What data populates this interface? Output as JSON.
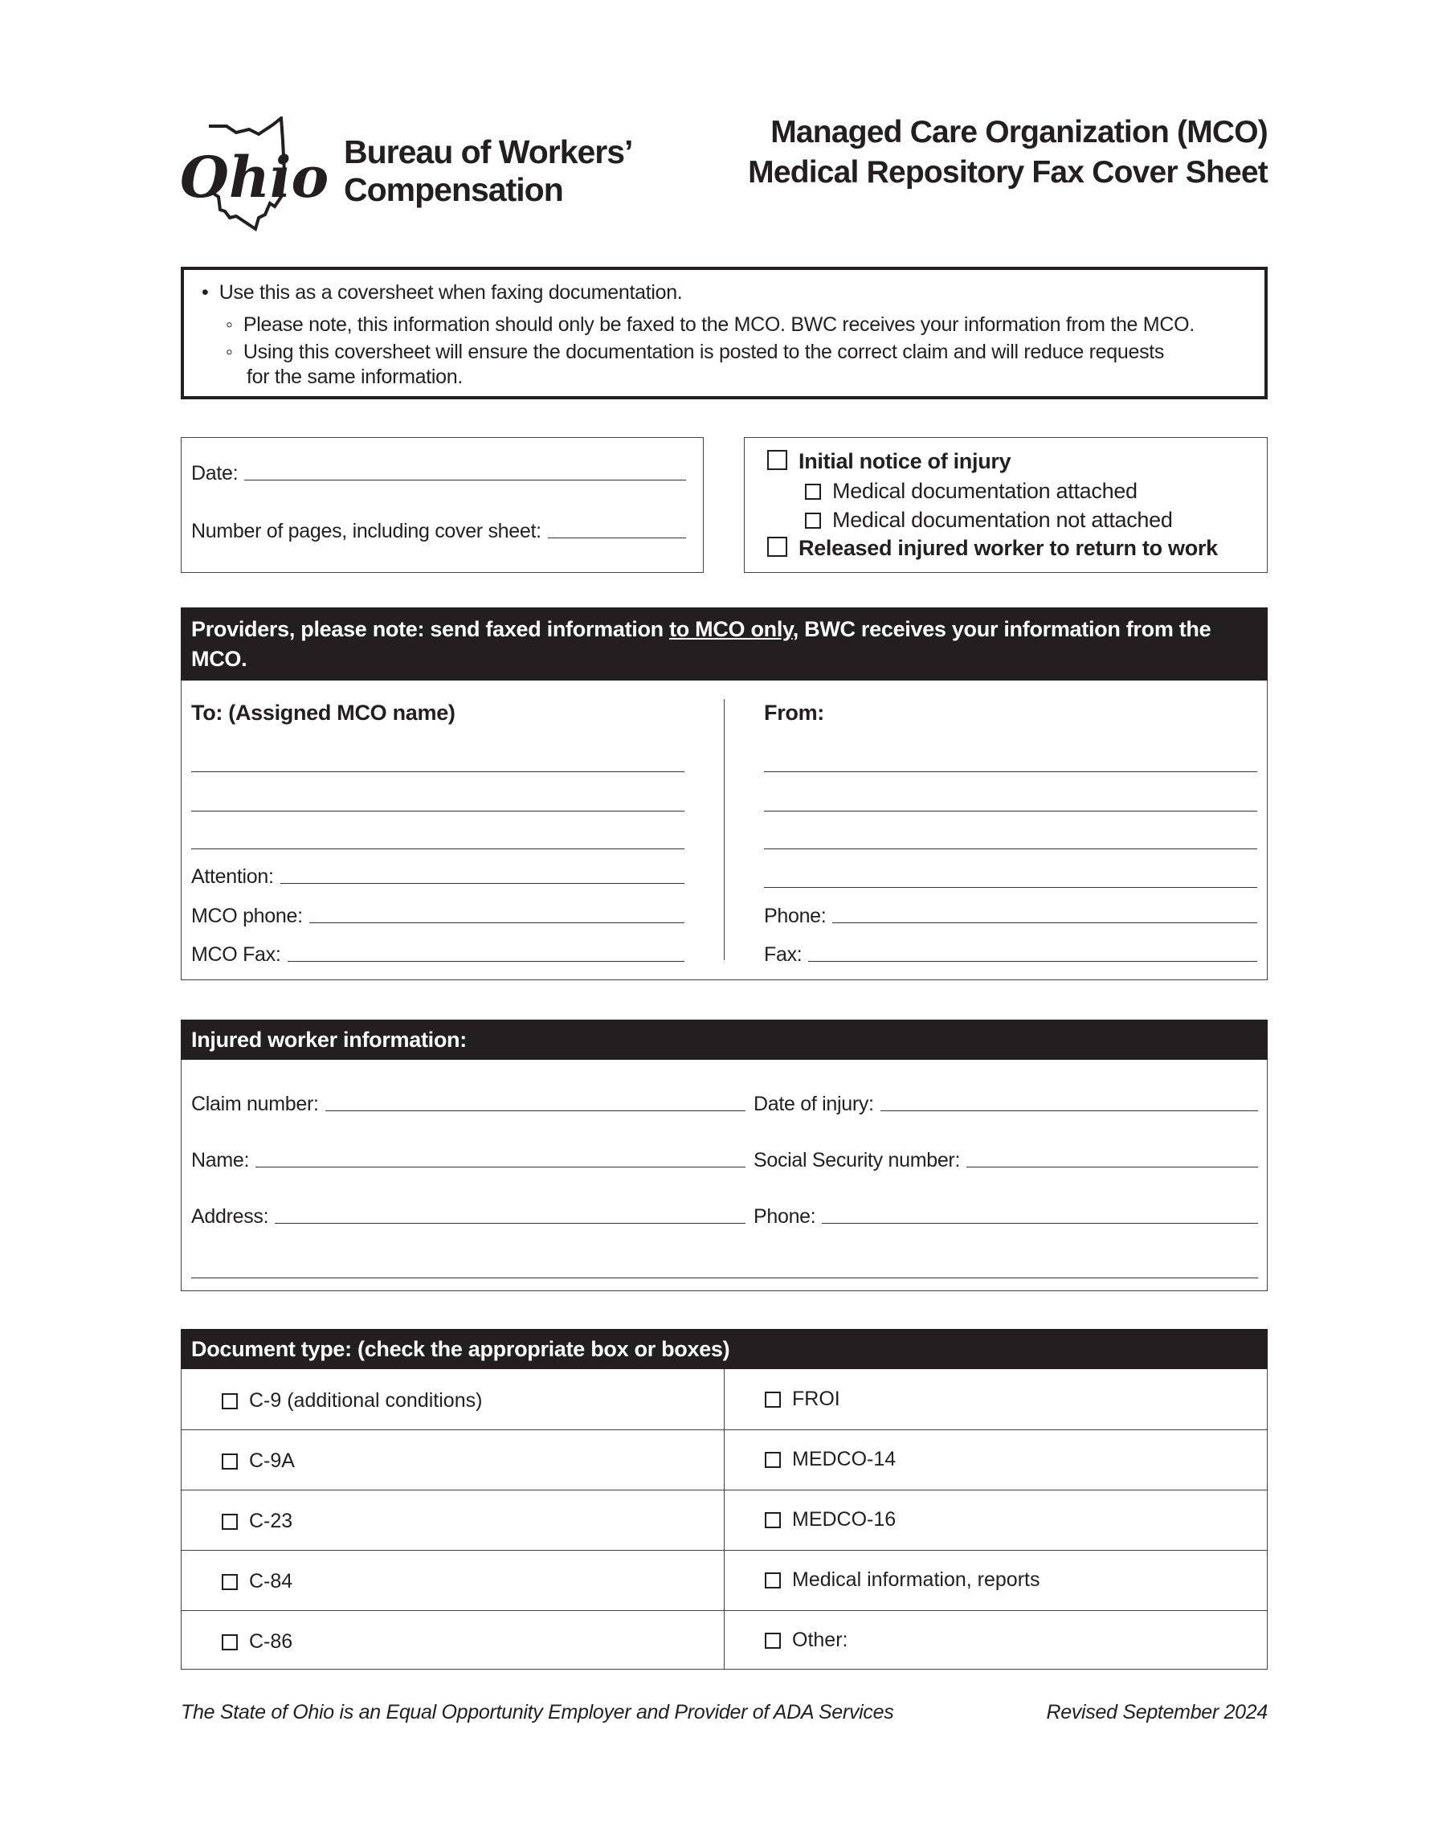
{
  "header": {
    "logo_text": "Ohio",
    "org_line1": "Bureau of Workers’",
    "org_line2": "Compensation",
    "title_line1": "Managed Care Organization (MCO)",
    "title_line2": "Medical Repository Fax Cover Sheet"
  },
  "notice": {
    "bullet": "Use this as a coversheet when faxing documentation.",
    "sub1": "Please note, this information should only be faxed to the MCO. BWC receives your information from the MCO.",
    "sub2a": "Using this coversheet will ensure the documentation is posted to the correct claim and will reduce requests",
    "sub2b": "for the same information."
  },
  "date_box": {
    "date_label": "Date:",
    "pages_label": "Number of pages, including cover sheet:"
  },
  "status_box": {
    "initial": "Initial notice of injury",
    "attached": "Medical documentation attached",
    "not_attached": "Medical documentation not attached",
    "released": "Released injured worker to return to work"
  },
  "providers": {
    "note_a": "Providers, please note:  send faxed information ",
    "note_u": "to MCO only",
    "note_b": ", BWC receives your information from the",
    "note_c": "MCO.",
    "to_label": "To: (Assigned MCO name)",
    "attention": "Attention:",
    "mco_phone": "MCO phone:",
    "mco_fax": "MCO Fax:",
    "from_label": "From:",
    "phone": "Phone:",
    "fax": "Fax:"
  },
  "injured": {
    "title": "Injured worker information:",
    "claim": "Claim number:",
    "date_injury": "Date of injury:",
    "name": "Name:",
    "ssn": "Social Security number:",
    "address": "Address:",
    "phone": "Phone:"
  },
  "doctype": {
    "title": "Document type: (check the appropriate box or boxes)",
    "left": [
      "C-9 (additional conditions)",
      "C-9A",
      "C-23",
      "C-84",
      "C-86"
    ],
    "right": [
      "FROI",
      "MEDCO-14",
      "MEDCO-16",
      "Medical information, reports",
      "Other:"
    ]
  },
  "footer": {
    "left": "The State of Ohio is an Equal Opportunity Employer and Provider of ADA Services",
    "right": "Revised September 2024"
  }
}
